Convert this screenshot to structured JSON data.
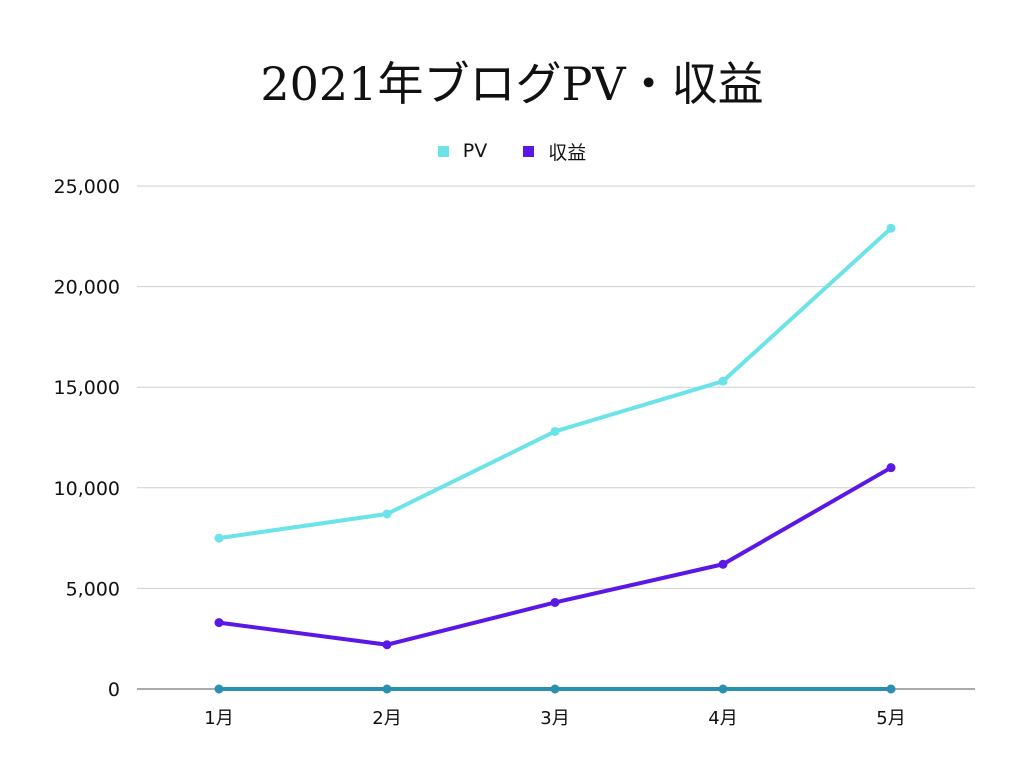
{
  "chart_data": {
    "type": "line",
    "title": "2021年ブログPV・収益",
    "categories": [
      "1月",
      "2月",
      "3月",
      "4月",
      "5月"
    ],
    "ylim": [
      0,
      25000
    ],
    "yticks": [
      "0",
      "5,000",
      "10,000",
      "15,000",
      "20,000",
      "25,000"
    ],
    "ytick_values": [
      0,
      5000,
      10000,
      15000,
      20000,
      25000
    ],
    "grid": true,
    "legend_position": "top-center",
    "series": [
      {
        "name": "PV",
        "values": [
          7500,
          8700,
          12800,
          15300,
          22900
        ],
        "color": "#6be3e8"
      },
      {
        "name": "収益",
        "values": [
          3300,
          2200,
          4300,
          6200,
          11000
        ],
        "color": "#5b17e6"
      },
      {
        "values": [
          0,
          0,
          0,
          0,
          0
        ],
        "color": "#2a8fb0"
      }
    ]
  }
}
